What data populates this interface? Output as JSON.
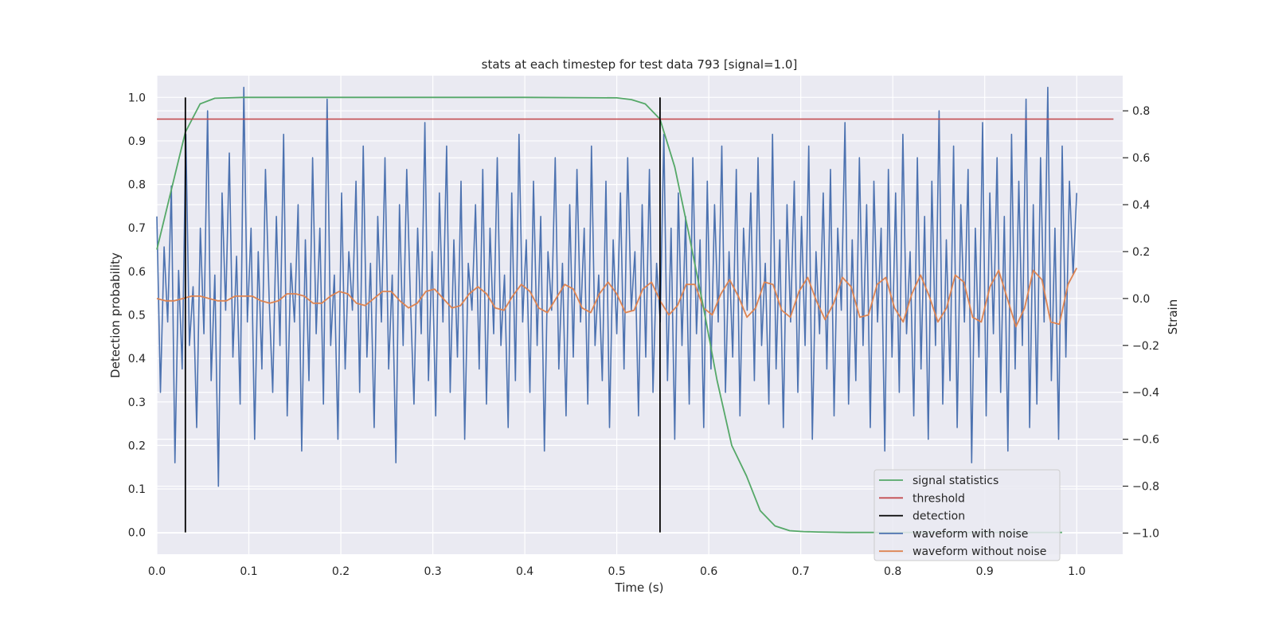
{
  "chart_data": {
    "type": "line",
    "title": "stats at each timestep for test data 793 [signal=1.0]",
    "xlabel": "Time (s)",
    "ylabel_left": "Detection probability",
    "ylabel_right": "Strain",
    "xlim": [
      0.0,
      1.05
    ],
    "ylim_left": [
      -0.05,
      1.05
    ],
    "ylim_right": [
      -1.09,
      0.95
    ],
    "x_ticks": [
      0.0,
      0.1,
      0.2,
      0.3,
      0.4,
      0.5,
      0.6,
      0.7,
      0.8,
      0.9,
      1.0
    ],
    "x_tick_labels": [
      "0.0",
      "0.1",
      "0.2",
      "0.3",
      "0.4",
      "0.5",
      "0.6",
      "0.7",
      "0.8",
      "0.9",
      "1.0"
    ],
    "y_left_ticks": [
      0.0,
      0.1,
      0.2,
      0.3,
      0.4,
      0.5,
      0.6,
      0.7,
      0.8,
      0.9,
      1.0
    ],
    "y_left_tick_labels": [
      "0.0",
      "0.1",
      "0.2",
      "0.3",
      "0.4",
      "0.5",
      "0.6",
      "0.7",
      "0.8",
      "0.9",
      "1.0"
    ],
    "y_right_ticks": [
      -1.0,
      -0.8,
      -0.6,
      -0.4,
      -0.2,
      0.0,
      0.2,
      0.4,
      0.6,
      0.8
    ],
    "y_right_tick_labels": [
      "−1.0",
      "−0.8",
      "−0.6",
      "−0.4",
      "−0.2",
      "0.0",
      "0.2",
      "0.4",
      "0.6",
      "0.8"
    ],
    "grid": true,
    "legend_position": "lower-right",
    "background_color": "#eaeaf2",
    "grid_color": "#ffffff",
    "series": [
      {
        "name": "signal statistics",
        "axis": "left",
        "color": "#55a868",
        "x": [
          0.0,
          0.016,
          0.031,
          0.047,
          0.063,
          0.078,
          0.094,
          0.109,
          0.125,
          0.2,
          0.3,
          0.4,
          0.5,
          0.516,
          0.531,
          0.547,
          0.563,
          0.578,
          0.594,
          0.609,
          0.625,
          0.641,
          0.656,
          0.672,
          0.688,
          0.703,
          0.719,
          0.75,
          0.8,
          0.9,
          0.984
        ],
        "values": [
          0.65,
          0.79,
          0.92,
          0.985,
          0.998,
          0.999,
          1.0,
          1.0,
          1.0,
          1.0,
          1.0,
          1.0,
          0.999,
          0.995,
          0.985,
          0.95,
          0.84,
          0.69,
          0.52,
          0.35,
          0.2,
          0.13,
          0.05,
          0.015,
          0.004,
          0.002,
          0.001,
          0.0,
          0.0,
          0.0,
          0.0
        ]
      },
      {
        "name": "threshold",
        "axis": "left",
        "color": "#c44e52",
        "x": [
          0.0,
          1.04
        ],
        "values": [
          0.95,
          0.95
        ]
      },
      {
        "name": "detection",
        "axis": "left",
        "color": "#000000",
        "segments": [
          {
            "x": 0.031,
            "y0": 0.0,
            "y1": 1.0
          },
          {
            "x": 0.547,
            "y0": 0.0,
            "y1": 1.0
          }
        ]
      },
      {
        "name": "waveform with noise",
        "axis": "right",
        "color": "#4c72b0",
        "x_start": 0.0,
        "x_end": 1.0,
        "values": [
          0.35,
          -0.4,
          0.22,
          -0.1,
          0.48,
          -0.7,
          0.12,
          -0.3,
          0.7,
          -0.2,
          0.05,
          -0.55,
          0.3,
          -0.15,
          0.8,
          -0.35,
          0.1,
          -0.8,
          0.45,
          -0.05,
          0.62,
          -0.25,
          0.18,
          -0.45,
          0.9,
          -0.1,
          0.3,
          -0.6,
          0.2,
          -0.3,
          0.55,
          0.0,
          -0.4,
          0.35,
          -0.2,
          0.7,
          -0.5,
          0.15,
          -0.1,
          0.4,
          -0.65,
          0.25,
          -0.35,
          0.6,
          -0.15,
          0.3,
          -0.45,
          0.85,
          -0.2,
          0.1,
          -0.6,
          0.45,
          -0.3,
          0.2,
          -0.05,
          0.5,
          -0.4,
          0.65,
          -0.25,
          0.15,
          -0.55,
          0.35,
          -0.1,
          0.6,
          -0.3,
          0.1,
          -0.7,
          0.4,
          -0.2,
          0.55,
          0.0,
          -0.45,
          0.3,
          -0.15,
          0.75,
          -0.35,
          0.2,
          -0.5,
          0.45,
          -0.1,
          0.65,
          -0.4,
          0.25,
          -0.25,
          0.5,
          -0.6,
          0.15,
          -0.05,
          0.4,
          -0.3,
          0.55,
          -0.45,
          0.3,
          -0.15,
          0.6,
          -0.2,
          0.1,
          -0.55,
          0.45,
          -0.35,
          0.7,
          -0.1,
          0.25,
          -0.4,
          0.5,
          -0.2,
          0.35,
          -0.65,
          0.2,
          -0.05,
          0.6,
          -0.3,
          0.15,
          -0.5,
          0.4,
          -0.25,
          0.55,
          -0.1,
          0.3,
          -0.45,
          0.65,
          -0.2,
          0.1,
          -0.35,
          0.5,
          -0.55,
          0.25,
          -0.15,
          0.45,
          -0.3,
          0.6,
          -0.05,
          0.2,
          -0.5,
          0.4,
          -0.25,
          0.55,
          -0.4,
          0.15,
          -0.1,
          0.7,
          -0.35,
          0.3,
          -0.6,
          0.45,
          -0.2,
          0.35,
          -0.45,
          0.6,
          -0.15,
          0.25,
          -0.55,
          0.5,
          -0.3,
          0.4,
          -0.1,
          0.65,
          -0.4,
          0.2,
          -0.25,
          0.55,
          -0.5,
          0.3,
          -0.05,
          0.45,
          -0.35,
          0.6,
          -0.2,
          0.15,
          -0.45,
          0.7,
          -0.3,
          0.25,
          -0.55,
          0.4,
          -0.1,
          0.5,
          -0.4,
          0.35,
          -0.2,
          0.65,
          -0.6,
          0.2,
          -0.15,
          0.45,
          -0.3,
          0.55,
          -0.5,
          0.3,
          -0.05,
          0.75,
          -0.45,
          0.25,
          -0.35,
          0.6,
          -0.2,
          0.4,
          -0.55,
          0.5,
          -0.1,
          0.3,
          -0.65,
          0.55,
          -0.25,
          0.45,
          -0.4,
          0.7,
          -0.15,
          0.2,
          -0.5,
          0.6,
          -0.3,
          0.35,
          -0.6,
          0.5,
          -0.2,
          0.8,
          -0.45,
          0.25,
          -0.35,
          0.65,
          -0.55,
          0.4,
          -0.1,
          0.55,
          -0.7,
          0.3,
          -0.25,
          0.75,
          -0.5,
          0.45,
          -0.15,
          0.6,
          -0.4,
          0.35,
          -0.65,
          0.7,
          -0.3,
          0.5,
          -0.2,
          0.85,
          -0.55,
          0.4,
          -0.45,
          0.6,
          -0.1,
          0.9,
          -0.35,
          0.3,
          -0.6,
          0.65,
          -0.25,
          0.5,
          0.1,
          0.45
        ]
      },
      {
        "name": "waveform without noise",
        "axis": "right",
        "color": "#dd8452",
        "x_start": 0.0,
        "x_end": 1.0,
        "values": [
          0.0,
          -0.01,
          -0.01,
          0.0,
          0.01,
          0.01,
          0.0,
          -0.01,
          -0.01,
          0.01,
          0.01,
          0.01,
          -0.01,
          -0.02,
          -0.01,
          0.02,
          0.02,
          0.01,
          -0.02,
          -0.02,
          0.01,
          0.03,
          0.02,
          -0.02,
          -0.03,
          0.0,
          0.03,
          0.03,
          -0.01,
          -0.04,
          -0.02,
          0.03,
          0.04,
          0.0,
          -0.04,
          -0.03,
          0.02,
          0.05,
          0.02,
          -0.04,
          -0.05,
          0.01,
          0.06,
          0.03,
          -0.04,
          -0.06,
          0.0,
          0.06,
          0.04,
          -0.04,
          -0.06,
          0.02,
          0.07,
          0.02,
          -0.06,
          -0.05,
          0.04,
          0.07,
          -0.01,
          -0.07,
          -0.03,
          0.06,
          0.06,
          -0.04,
          -0.07,
          0.02,
          0.08,
          0.01,
          -0.08,
          -0.04,
          0.07,
          0.06,
          -0.05,
          -0.08,
          0.03,
          0.09,
          -0.01,
          -0.09,
          -0.02,
          0.09,
          0.05,
          -0.08,
          -0.07,
          0.06,
          0.09,
          -0.04,
          -0.1,
          0.02,
          0.1,
          0.01,
          -0.1,
          -0.04,
          0.1,
          0.07,
          -0.08,
          -0.1,
          0.05,
          0.12,
          0.0,
          -0.12,
          -0.04,
          0.12,
          0.08,
          -0.1,
          -0.11,
          0.06,
          0.13
        ]
      }
    ]
  }
}
